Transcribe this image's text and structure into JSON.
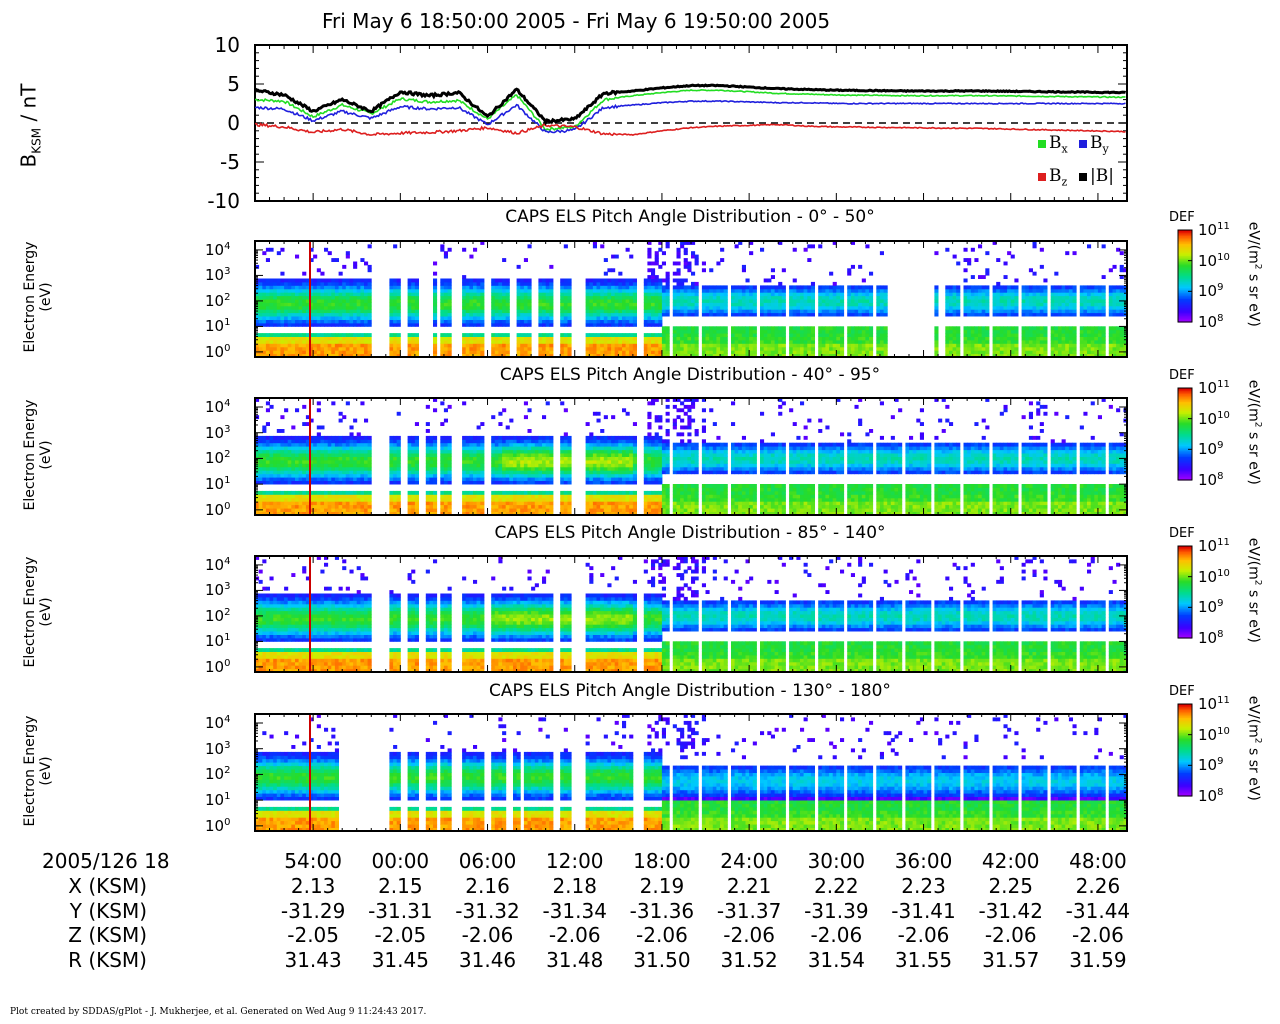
{
  "title": "Fri May  6 18:50:00 2005 - Fri May  6 19:50:00 2005",
  "mag_panel": {
    "ylabel_main": "B",
    "ylabel_sub": "KSM",
    "ylabel_unit": " / nT",
    "yticks": [
      "10",
      "5",
      "0",
      "-5",
      "-10"
    ],
    "ylim": [
      -10,
      10
    ],
    "legend": [
      {
        "main": "B",
        "sub": "x",
        "color": "#22dd22"
      },
      {
        "main": "B",
        "sub": "y",
        "color": "#1f1fdd"
      },
      {
        "main": "B",
        "sub": "z",
        "color": "#dd1f1f"
      },
      {
        "main": "|B|",
        "sub": "",
        "color": "#000000"
      }
    ]
  },
  "spec_panels": [
    {
      "title": "CAPS ELS Pitch Angle Distribution - 0° - 50°"
    },
    {
      "title": "CAPS ELS Pitch Angle Distribution - 40° - 95°"
    },
    {
      "title": "CAPS ELS Pitch Angle Distribution - 85° - 140°"
    },
    {
      "title": "CAPS ELS Pitch Angle Distribution - 130° - 180°"
    }
  ],
  "spec_ylabel_line1": "Electron Energy",
  "spec_ylabel_line2": "(eV)",
  "spec_yticks": [
    {
      "base": "10",
      "exp": "4"
    },
    {
      "base": "10",
      "exp": "3"
    },
    {
      "base": "10",
      "exp": "2"
    },
    {
      "base": "10",
      "exp": "1"
    },
    {
      "base": "10",
      "exp": "0"
    }
  ],
  "colorbar": {
    "label": "DEF",
    "ticks": [
      {
        "base": "10",
        "exp": "11"
      },
      {
        "base": "10",
        "exp": "10"
      },
      {
        "base": "10",
        "exp": "9"
      },
      {
        "base": "10",
        "exp": "8"
      }
    ],
    "unit_a": "eV/(m",
    "unit_sup": "2",
    "unit_b": " s sr eV)"
  },
  "table": {
    "date_label": "2005/126 18",
    "rows": [
      {
        "label": "X (KSM)",
        "values": [
          "2.13",
          "2.15",
          "2.16",
          "2.18",
          "2.19",
          "2.21",
          "2.22",
          "2.23",
          "2.25",
          "2.26"
        ]
      },
      {
        "label": "Y (KSM)",
        "values": [
          "-31.29",
          "-31.31",
          "-31.32",
          "-31.34",
          "-31.36",
          "-31.37",
          "-31.39",
          "-31.41",
          "-31.42",
          "-31.44"
        ]
      },
      {
        "label": "Z (KSM)",
        "values": [
          "-2.05",
          "-2.05",
          "-2.06",
          "-2.06",
          "-2.06",
          "-2.06",
          "-2.06",
          "-2.06",
          "-2.06",
          "-2.06"
        ]
      },
      {
        "label": "R (KSM)",
        "values": [
          "31.43",
          "31.45",
          "31.46",
          "31.48",
          "31.50",
          "31.52",
          "31.54",
          "31.55",
          "31.57",
          "31.59"
        ]
      }
    ],
    "times": [
      "54:00",
      "00:00",
      "06:00",
      "12:00",
      "18:00",
      "24:00",
      "30:00",
      "36:00",
      "42:00",
      "48:00"
    ]
  },
  "footer": "Plot created by SDDAS/gPlot - J. Mukherjee, et al.  Generated on Wed Aug  9 11:24:43 2017.",
  "chart_data": {
    "type": "line",
    "x_unit": "minutes after 18:50:00",
    "xlim": [
      0,
      60
    ],
    "ylim": [
      -10,
      10
    ],
    "series": [
      {
        "name": "Bx",
        "color": "#22dd22",
        "x": [
          0,
          2,
          4,
          6,
          8,
          10,
          12,
          14,
          16,
          18,
          20,
          22,
          24,
          26,
          28,
          30,
          32,
          34,
          36,
          38,
          40,
          45,
          50,
          55,
          60
        ],
        "y": [
          3.0,
          2.8,
          0.8,
          2.3,
          1.2,
          3.1,
          2.7,
          2.9,
          0.5,
          3.6,
          -0.8,
          -0.5,
          3.0,
          3.5,
          3.9,
          4.2,
          4.2,
          4.0,
          3.8,
          3.7,
          3.6,
          3.5,
          3.5,
          3.4,
          3.3
        ]
      },
      {
        "name": "By",
        "color": "#1f1fdd",
        "x": [
          0,
          2,
          4,
          6,
          8,
          10,
          12,
          14,
          16,
          18,
          20,
          22,
          24,
          26,
          28,
          30,
          32,
          34,
          36,
          38,
          40,
          45,
          50,
          55,
          60
        ],
        "y": [
          2.0,
          1.8,
          0.3,
          1.5,
          0.6,
          2.1,
          1.8,
          2.0,
          -0.2,
          2.3,
          -1.2,
          -0.9,
          2.0,
          2.3,
          2.6,
          2.8,
          2.8,
          2.7,
          2.6,
          2.6,
          2.5,
          2.5,
          2.5,
          2.5,
          2.5
        ]
      },
      {
        "name": "Bz",
        "color": "#dd1f1f",
        "x": [
          0,
          2,
          4,
          6,
          8,
          10,
          12,
          14,
          16,
          18,
          20,
          22,
          24,
          26,
          28,
          30,
          32,
          34,
          36,
          38,
          40,
          45,
          50,
          55,
          60
        ],
        "y": [
          -0.2,
          -0.5,
          -1.2,
          -0.8,
          -1.5,
          -1.3,
          -1.2,
          -1.0,
          -0.6,
          -1.3,
          -0.3,
          -0.5,
          -1.4,
          -1.5,
          -1.0,
          -0.6,
          -0.4,
          -0.3,
          -0.2,
          -0.4,
          -0.5,
          -0.6,
          -0.7,
          -0.9,
          -1.1
        ]
      },
      {
        "name": "|B|",
        "color": "#000000",
        "x": [
          0,
          2,
          4,
          6,
          8,
          10,
          12,
          14,
          16,
          18,
          20,
          22,
          24,
          26,
          28,
          30,
          32,
          34,
          36,
          38,
          40,
          45,
          50,
          55,
          60
        ],
        "y": [
          4.2,
          3.6,
          1.5,
          3.0,
          1.5,
          4.0,
          3.5,
          3.9,
          0.8,
          4.3,
          0.2,
          0.5,
          3.8,
          4.1,
          4.5,
          4.8,
          4.8,
          4.6,
          4.4,
          4.3,
          4.2,
          4.1,
          4.1,
          4.0,
          3.9
        ]
      }
    ],
    "spectrogram_energy_range_eV": [
      1,
      10000
    ],
    "colorbar_range": [
      100000000.0,
      100000000000.0
    ]
  }
}
